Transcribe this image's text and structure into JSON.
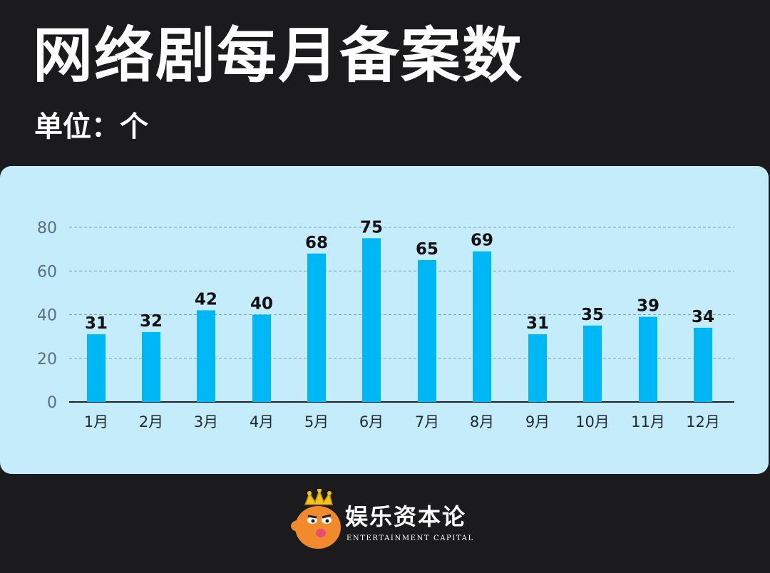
{
  "header": {
    "title": "网络剧每月备案数",
    "unit": "单位：个"
  },
  "colors": {
    "background": "#1b1b1d",
    "panel": "#c5ecfb",
    "bar": "#00b7f5",
    "grid": "#7aa4b8",
    "axis": "#222222"
  },
  "chart_data": {
    "type": "bar",
    "categories": [
      "1月",
      "2月",
      "3月",
      "4月",
      "5月",
      "6月",
      "7月",
      "8月",
      "9月",
      "10月",
      "11月",
      "12月"
    ],
    "series": [
      {
        "values": [
          31,
          32,
          42,
          40,
          68,
          75,
          65,
          69,
          31,
          35,
          39,
          34
        ]
      }
    ],
    "ylim": [
      0,
      80
    ],
    "yticks": [
      0,
      20,
      40,
      60,
      80
    ],
    "grid": true,
    "data_labels": true
  },
  "footer": {
    "brand_name": "娱乐资本论",
    "brand_sub": "ENTERTAINMENT CAPITAL",
    "logo_icon": "crowned-mascot-icon"
  }
}
